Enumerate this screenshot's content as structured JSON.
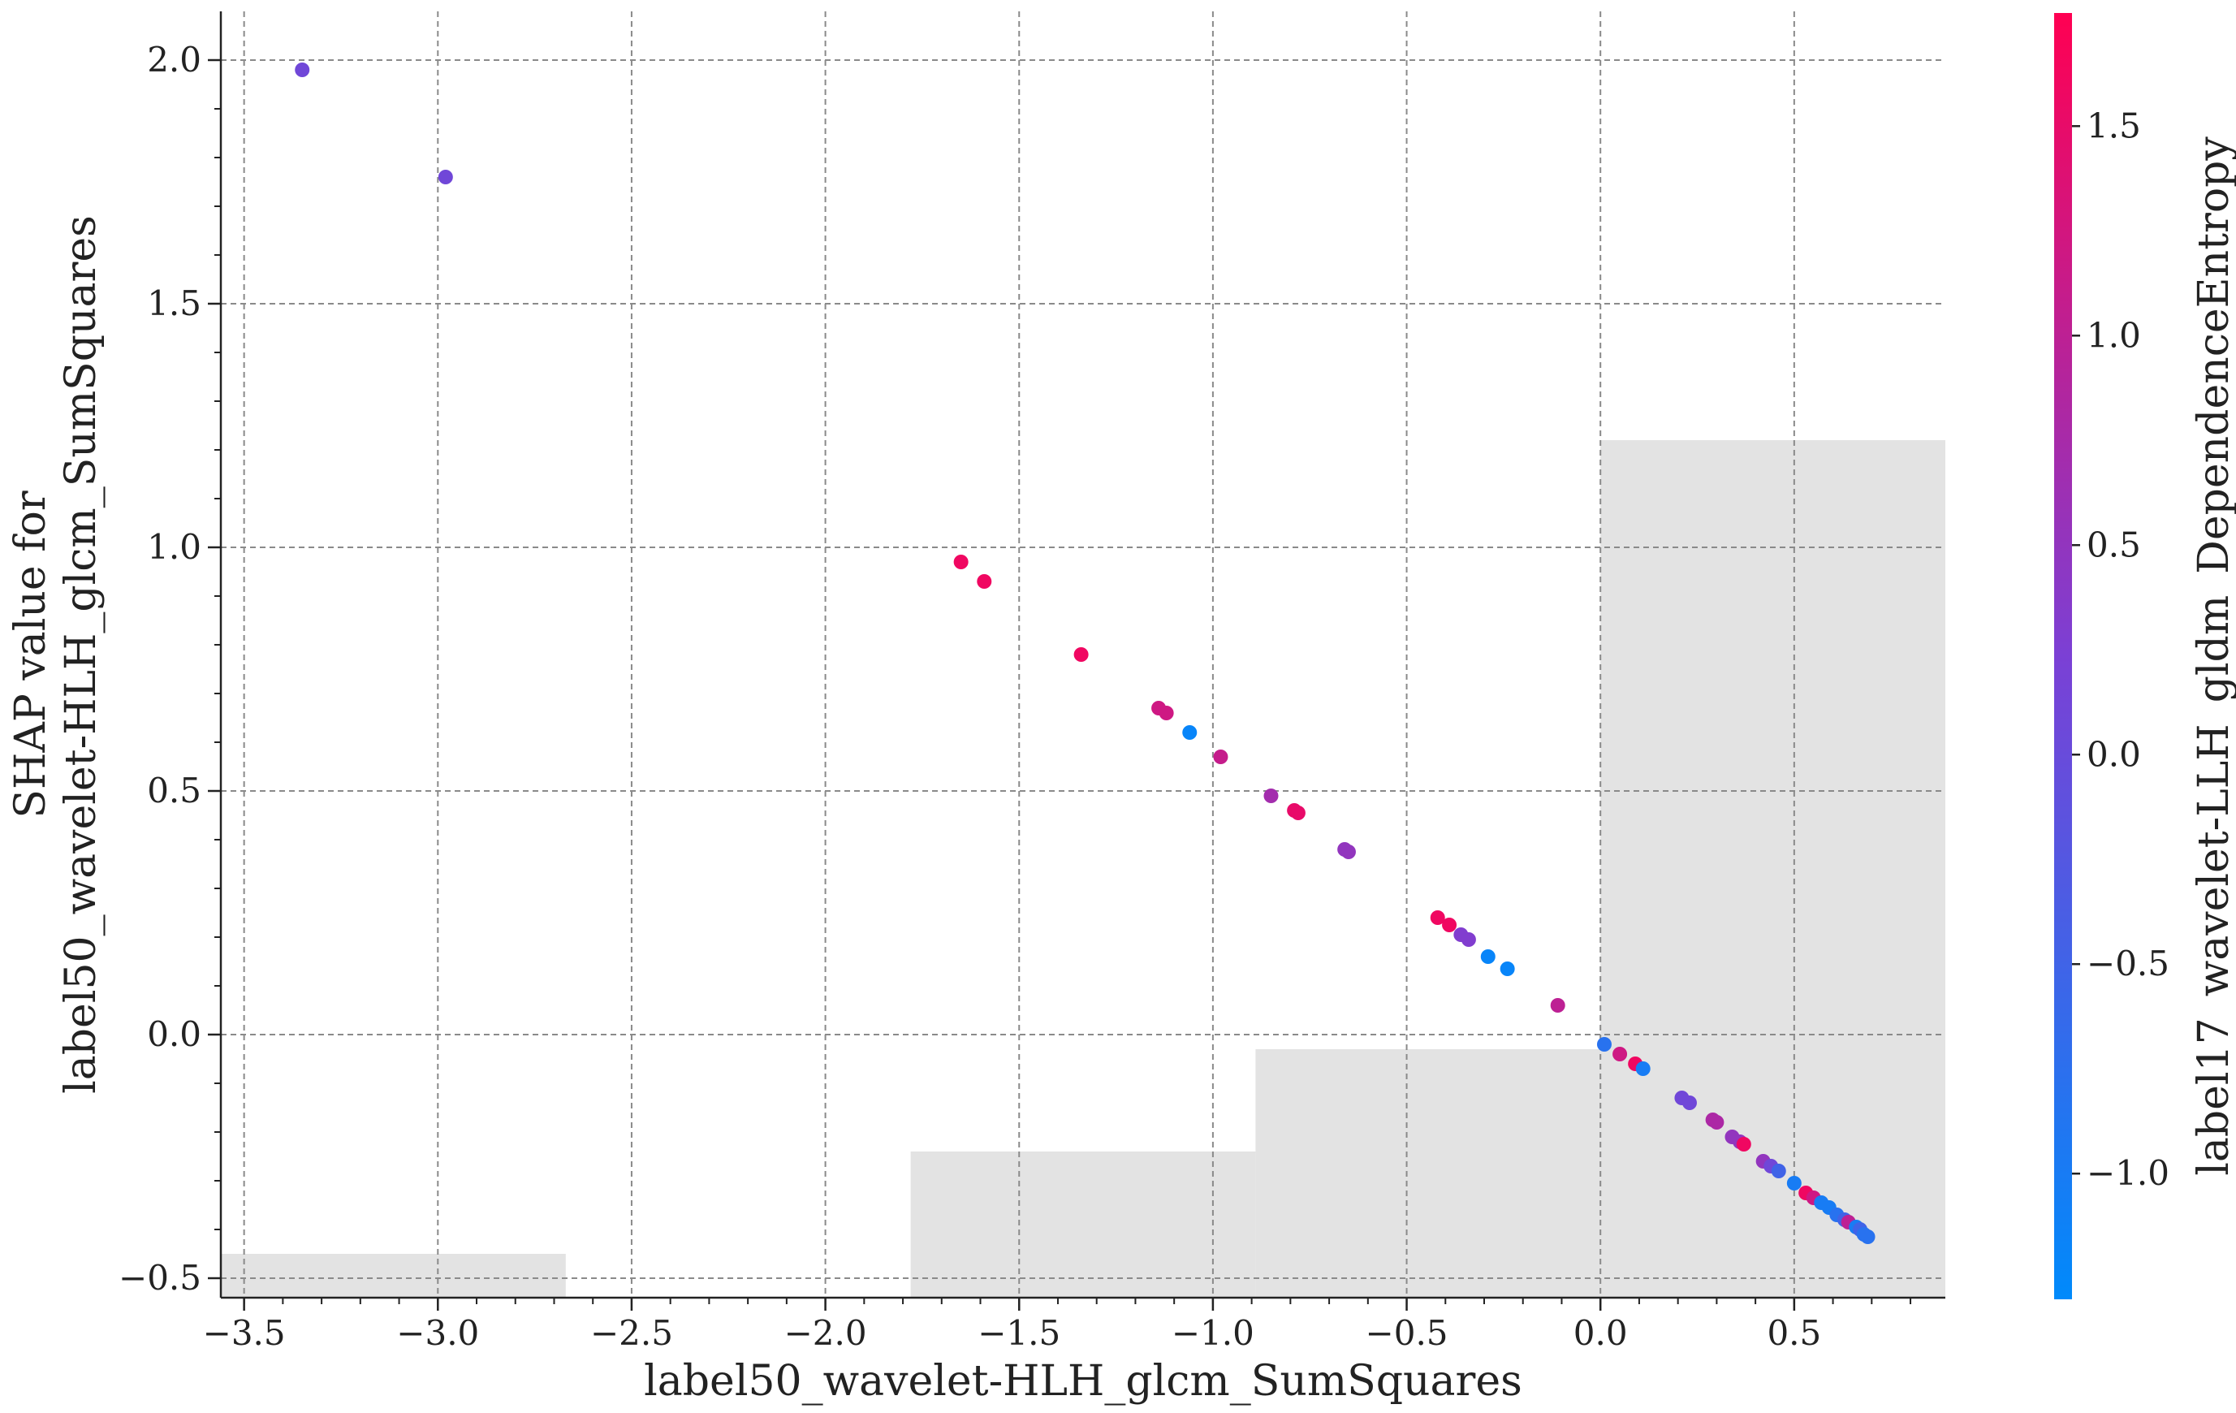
{
  "chart_data": {
    "type": "scatter",
    "title": "",
    "xlabel": "label50_wavelet-HLH_glcm_SumSquares",
    "ylabel_lines": [
      "SHAP value for",
      "label50_wavelet-HLH_glcm_SumSquares"
    ],
    "xlim": [
      -3.56,
      0.89
    ],
    "ylim": [
      -0.54,
      2.1
    ],
    "xticks": [
      -3.5,
      -3.0,
      -2.5,
      -2.0,
      -1.5,
      -1.0,
      -0.5,
      0.0,
      0.5
    ],
    "xtick_labels": [
      "−3.5",
      "−3.0",
      "−2.5",
      "−2.0",
      "−1.5",
      "−1.0",
      "−0.5",
      "0.0",
      "0.5"
    ],
    "yticks": [
      -0.5,
      0.0,
      0.5,
      1.0,
      1.5,
      2.0
    ],
    "ytick_labels": [
      "−0.5",
      "0.0",
      "0.5",
      "1.0",
      "1.5",
      "2.0"
    ],
    "grid": true,
    "colorbar": {
      "label": "label17_wavelet-LLH_gldm_DependenceEntropy",
      "range": [
        -1.3,
        1.77
      ],
      "ticks": [
        -1.0,
        -0.5,
        0.0,
        0.5,
        1.0,
        1.5
      ],
      "tick_labels": [
        "−1.0",
        "−0.5",
        "0.0",
        "0.5",
        "1.0",
        "1.5"
      ],
      "colors": [
        "#008afb",
        "#7b40d5",
        "#ff0052"
      ]
    },
    "histogram_bars": [
      {
        "x0": -3.56,
        "x1": -2.67,
        "top": -0.45
      },
      {
        "x0": -1.78,
        "x1": -0.89,
        "top": -0.24
      },
      {
        "x0": -0.89,
        "x1": 0.0,
        "top": -0.03
      },
      {
        "x0": 0.0,
        "x1": 0.89,
        "top": 1.22
      }
    ],
    "histogram_color": "#e3e3e3",
    "points": [
      {
        "x": -3.35,
        "y": 1.98,
        "c": 0.1
      },
      {
        "x": -2.98,
        "y": 1.76,
        "c": 0.1
      },
      {
        "x": -1.65,
        "y": 0.97,
        "c": 1.6
      },
      {
        "x": -1.59,
        "y": 0.93,
        "c": 1.6
      },
      {
        "x": -1.34,
        "y": 0.78,
        "c": 1.6
      },
      {
        "x": -1.14,
        "y": 0.67,
        "c": 1.2
      },
      {
        "x": -1.12,
        "y": 0.66,
        "c": 1.2
      },
      {
        "x": -1.06,
        "y": 0.62,
        "c": -1.2
      },
      {
        "x": -0.98,
        "y": 0.57,
        "c": 1.1
      },
      {
        "x": -0.85,
        "y": 0.49,
        "c": 0.7
      },
      {
        "x": -0.79,
        "y": 0.46,
        "c": 1.5
      },
      {
        "x": -0.78,
        "y": 0.455,
        "c": 1.5
      },
      {
        "x": -0.66,
        "y": 0.38,
        "c": 0.5
      },
      {
        "x": -0.65,
        "y": 0.375,
        "c": 0.5
      },
      {
        "x": -0.42,
        "y": 0.24,
        "c": 1.6
      },
      {
        "x": -0.39,
        "y": 0.225,
        "c": 1.6
      },
      {
        "x": -0.36,
        "y": 0.205,
        "c": 0.3
      },
      {
        "x": -0.34,
        "y": 0.195,
        "c": 0.3
      },
      {
        "x": -0.29,
        "y": 0.16,
        "c": -1.2
      },
      {
        "x": -0.24,
        "y": 0.135,
        "c": -1.2
      },
      {
        "x": -0.11,
        "y": 0.06,
        "c": 1.0
      },
      {
        "x": 0.01,
        "y": -0.02,
        "c": -0.8
      },
      {
        "x": 0.05,
        "y": -0.04,
        "c": 1.2
      },
      {
        "x": 0.09,
        "y": -0.06,
        "c": 1.6
      },
      {
        "x": 0.11,
        "y": -0.07,
        "c": -1.0
      },
      {
        "x": 0.21,
        "y": -0.13,
        "c": 0.1
      },
      {
        "x": 0.23,
        "y": -0.14,
        "c": 0.1
      },
      {
        "x": 0.29,
        "y": -0.175,
        "c": 0.8
      },
      {
        "x": 0.3,
        "y": -0.18,
        "c": 0.8
      },
      {
        "x": 0.34,
        "y": -0.21,
        "c": 0.5
      },
      {
        "x": 0.36,
        "y": -0.22,
        "c": 0.5
      },
      {
        "x": 0.37,
        "y": -0.225,
        "c": 1.6
      },
      {
        "x": 0.42,
        "y": -0.26,
        "c": 0.5
      },
      {
        "x": 0.44,
        "y": -0.27,
        "c": 0.1
      },
      {
        "x": 0.46,
        "y": -0.28,
        "c": -0.5
      },
      {
        "x": 0.5,
        "y": -0.305,
        "c": -1.0
      },
      {
        "x": 0.53,
        "y": -0.325,
        "c": 1.6
      },
      {
        "x": 0.55,
        "y": -0.335,
        "c": 1.2
      },
      {
        "x": 0.57,
        "y": -0.345,
        "c": -1.0
      },
      {
        "x": 0.59,
        "y": -0.355,
        "c": -1.0
      },
      {
        "x": 0.61,
        "y": -0.37,
        "c": -0.8
      },
      {
        "x": 0.63,
        "y": -0.38,
        "c": -0.5
      },
      {
        "x": 0.64,
        "y": -0.385,
        "c": 1.0
      },
      {
        "x": 0.66,
        "y": -0.395,
        "c": -1.0
      },
      {
        "x": 0.67,
        "y": -0.4,
        "c": -0.5
      },
      {
        "x": 0.68,
        "y": -0.41,
        "c": -0.8
      },
      {
        "x": 0.69,
        "y": -0.415,
        "c": -0.8
      }
    ]
  }
}
